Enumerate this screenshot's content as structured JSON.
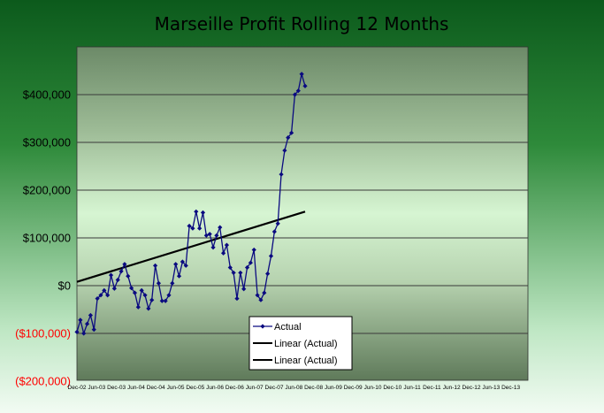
{
  "chart_data": {
    "type": "line",
    "title": "Marseille Profit Rolling 12 Months",
    "xlabel": "",
    "ylabel": "",
    "ylim": [
      -200000,
      400000
    ],
    "y_ticks": [
      {
        "value": 400000,
        "label": "$400,000",
        "color": "#000000"
      },
      {
        "value": 300000,
        "label": "$300,000",
        "color": "#000000"
      },
      {
        "value": 200000,
        "label": "$200,000",
        "color": "#000000"
      },
      {
        "value": 100000,
        "label": "$100,000",
        "color": "#000000"
      },
      {
        "value": 0,
        "label": "$0",
        "color": "#000000"
      },
      {
        "value": -100000,
        "label": "($100,000)",
        "color": "#ff0000"
      },
      {
        "value": -200000,
        "label": "($200,000)",
        "color": "#ff0000"
      }
    ],
    "x_tick_labels": [
      "Dec-02",
      "Jun-03",
      "Dec-03",
      "Jun-04",
      "Dec-04",
      "Jun-05",
      "Dec-05",
      "Jun-06",
      "Dec-06",
      "Jun-07",
      "Dec-07",
      "Jun-08",
      "Dec-08",
      "Jun-09",
      "Dec-09",
      "Jun-10",
      "Dec-10",
      "Jun-11",
      "Dec-11",
      "Jun-12",
      "Dec-12",
      "Jun-13",
      "Dec-13"
    ],
    "grid": true,
    "legend_position": "bottom-center",
    "series": [
      {
        "name": "Actual",
        "color": "#0a0a80",
        "marker": "diamond",
        "values": [
          -97000,
          -72000,
          -100000,
          -80000,
          -62000,
          -92000,
          -27000,
          -20000,
          -10000,
          -20000,
          22000,
          -6000,
          12000,
          30000,
          45000,
          20000,
          -5000,
          -15000,
          -45000,
          -10000,
          -20000,
          -48000,
          -30000,
          42000,
          5000,
          -32000,
          -32000,
          -20000,
          5000,
          45000,
          20000,
          50000,
          42000,
          125000,
          120000,
          155000,
          120000,
          153000,
          105000,
          108000,
          80000,
          105000,
          122000,
          68000,
          85000,
          38000,
          27000,
          -27000,
          27000,
          -7000,
          38000,
          48000,
          75000,
          -20000,
          -30000,
          -15000,
          25000,
          62000,
          113000,
          130000,
          233000,
          283000,
          310000,
          320000,
          400000,
          408000,
          443000,
          418000
        ]
      },
      {
        "name": "Linear (Actual)",
        "color": "#000000",
        "trend": {
          "start": 8000,
          "end": 155000
        }
      },
      {
        "name": "Linear (Actual)",
        "color": "#000000",
        "trend": null
      }
    ]
  }
}
